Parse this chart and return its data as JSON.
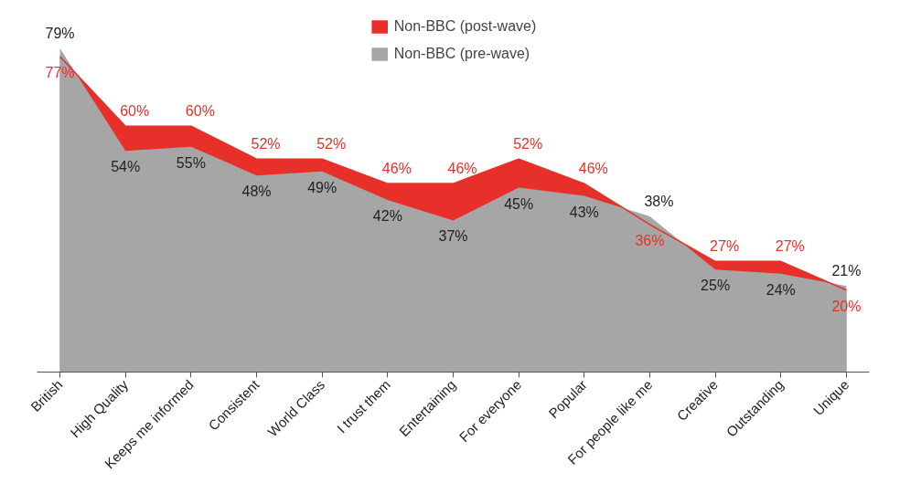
{
  "chart_data": {
    "type": "area",
    "categories": [
      "British",
      "High Quality",
      "Keeps me informed",
      "Consistent",
      "World Class",
      "I trust them",
      "Entertaining",
      "For everyone",
      "Popular",
      "For people like me",
      "Creative",
      "Outstanding",
      "Unique"
    ],
    "series": [
      {
        "name": "Non-BBC (post-wave)",
        "color": "#e8302a",
        "values": [
          77,
          60,
          60,
          52,
          52,
          46,
          46,
          52,
          46,
          36,
          27,
          27,
          20
        ],
        "value_labels": [
          "77%",
          "60%",
          "60%",
          "52%",
          "52%",
          "46%",
          "46%",
          "52%",
          "46%",
          "36%",
          "27%",
          "27%",
          "20%"
        ]
      },
      {
        "name": "Non-BBC (pre-wave)",
        "color": "#a6a6a6",
        "values": [
          79,
          54,
          55,
          48,
          49,
          42,
          37,
          45,
          43,
          38,
          25,
          24,
          21
        ],
        "value_labels": [
          "79%",
          "54%",
          "55%",
          "48%",
          "49%",
          "42%",
          "37%",
          "45%",
          "43%",
          "38%",
          "25%",
          "24%",
          "21%"
        ]
      }
    ],
    "grid": false,
    "legend": "top"
  }
}
